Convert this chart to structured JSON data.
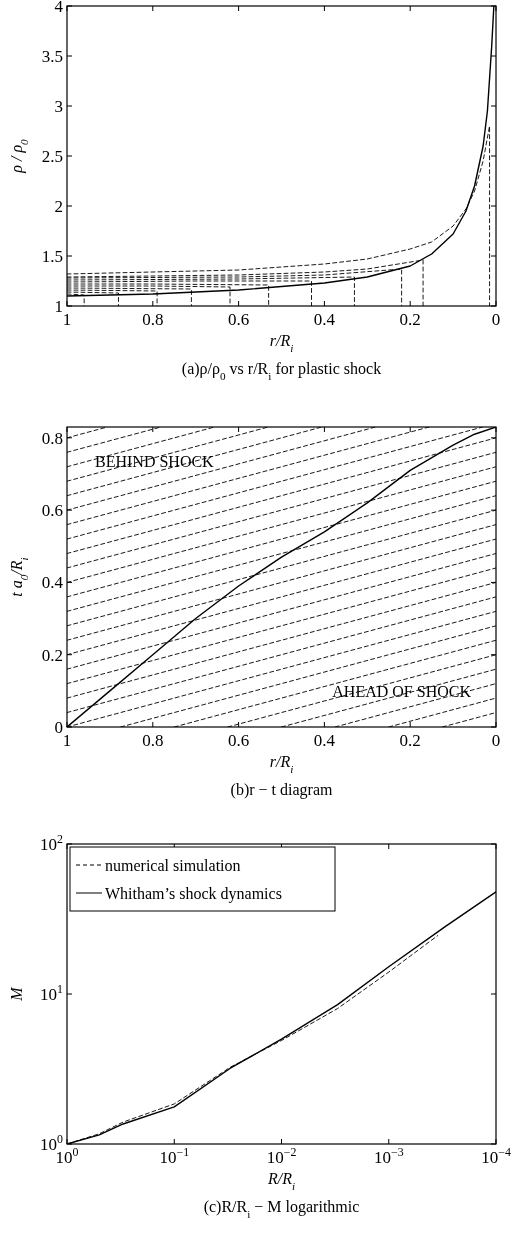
{
  "chart_data": [
    {
      "type": "line",
      "title": "(a)ρ/ρ$_{0}$ vs r/R$_{i}$ for plastic shock",
      "xlabel": "r/R$_{i}$",
      "ylabel": "ρ / ρ$_{0}$",
      "xlim": [
        1,
        0
      ],
      "ylim": [
        1,
        4
      ],
      "xticks": [
        1,
        0.8,
        0.6,
        0.4,
        0.2,
        0
      ],
      "yticks": [
        1,
        1.5,
        2,
        2.5,
        3,
        3.5,
        4
      ],
      "grid": false,
      "legend": false,
      "series": [
        {
          "color": "#000000",
          "line_style": "solid",
          "x": [
            1,
            0.8,
            0.6,
            0.4,
            0.3,
            0.2,
            0.15,
            0.1,
            0.07,
            0.05,
            0.03,
            0.02,
            0.01,
            0.005
          ],
          "values": [
            1.1,
            1.12,
            1.16,
            1.23,
            1.29,
            1.4,
            1.52,
            1.72,
            1.95,
            2.2,
            2.6,
            2.95,
            3.6,
            4
          ]
        },
        {
          "color": "#000000",
          "line_style": "dashed",
          "x": [
            1,
            0.96,
            0.96
          ],
          "values": [
            1.12,
            1.11,
            1
          ]
        },
        {
          "color": "#000000",
          "line_style": "dashed",
          "x": [
            1,
            0.88,
            0.88
          ],
          "values": [
            1.14,
            1.13,
            1
          ]
        },
        {
          "color": "#000000",
          "line_style": "dashed",
          "x": [
            1,
            0.79,
            0.79
          ],
          "values": [
            1.16,
            1.15,
            1
          ]
        },
        {
          "color": "#000000",
          "line_style": "dashed",
          "x": [
            1,
            0.71,
            0.71
          ],
          "values": [
            1.18,
            1.17,
            1
          ]
        },
        {
          "color": "#000000",
          "line_style": "dashed",
          "x": [
            1,
            0.8,
            0.62,
            0.62
          ],
          "values": [
            1.2,
            1.2,
            1.19,
            1
          ]
        },
        {
          "color": "#000000",
          "line_style": "dashed",
          "x": [
            1,
            0.8,
            0.53,
            0.53
          ],
          "values": [
            1.22,
            1.22,
            1.21,
            1
          ]
        },
        {
          "color": "#000000",
          "line_style": "dashed",
          "x": [
            1,
            0.7,
            0.43,
            0.43
          ],
          "values": [
            1.24,
            1.25,
            1.25,
            1
          ]
        },
        {
          "color": "#000000",
          "line_style": "dashed",
          "x": [
            1,
            0.6,
            0.33,
            0.33
          ],
          "values": [
            1.26,
            1.27,
            1.29,
            1
          ]
        },
        {
          "color": "#000000",
          "line_style": "dashed",
          "x": [
            1,
            0.6,
            0.4,
            0.22,
            0.22
          ],
          "values": [
            1.28,
            1.29,
            1.31,
            1.37,
            1
          ]
        },
        {
          "color": "#000000",
          "line_style": "dashed",
          "x": [
            1,
            0.6,
            0.4,
            0.3,
            0.17,
            0.17
          ],
          "values": [
            1.29,
            1.31,
            1.34,
            1.37,
            1.46,
            1
          ]
        },
        {
          "color": "#000000",
          "line_style": "dashed",
          "x": [
            1,
            0.6,
            0.4,
            0.3,
            0.2,
            0.15,
            0.1,
            0.07,
            0.05,
            0.03,
            0.015,
            0.015
          ],
          "values": [
            1.32,
            1.36,
            1.42,
            1.47,
            1.57,
            1.64,
            1.8,
            1.97,
            2.15,
            2.45,
            2.8,
            1
          ]
        }
      ]
    },
    {
      "type": "line",
      "title": "(b)r − t diagram",
      "xlabel": "r/R$_{i}$",
      "ylabel": "t a$_{0}$/R$_{i}$",
      "xlim": [
        1,
        0
      ],
      "ylim": [
        0,
        0.83
      ],
      "xticks": [
        1,
        0.8,
        0.6,
        0.4,
        0.2,
        0
      ],
      "yticks": [
        0,
        0.2,
        0.4,
        0.6,
        0.8
      ],
      "grid": false,
      "legend": false,
      "annotations": [
        "BEHIND SHOCK",
        "AHEAD OF SHOCK"
      ],
      "series": [
        {
          "color": "#000000",
          "line_style": "dashed",
          "x": [
            1,
            0.906
          ],
          "values": [
            0.8,
            0.83
          ]
        },
        {
          "color": "#000000",
          "line_style": "dashed",
          "x": [
            1,
            0.781
          ],
          "values": [
            0.76,
            0.83
          ]
        },
        {
          "color": "#000000",
          "line_style": "dashed",
          "x": [
            1,
            0.656
          ],
          "values": [
            0.72,
            0.83
          ]
        },
        {
          "color": "#000000",
          "line_style": "dashed",
          "x": [
            1,
            0.531
          ],
          "values": [
            0.68,
            0.83
          ]
        },
        {
          "color": "#000000",
          "line_style": "dashed",
          "x": [
            1,
            0.406
          ],
          "values": [
            0.64,
            0.83
          ]
        },
        {
          "color": "#000000",
          "line_style": "dashed",
          "x": [
            1,
            0.281
          ],
          "values": [
            0.6,
            0.83
          ]
        },
        {
          "color": "#000000",
          "line_style": "dashed",
          "x": [
            1,
            0.156
          ],
          "values": [
            0.56,
            0.83
          ]
        },
        {
          "color": "#000000",
          "line_style": "dashed",
          "x": [
            1,
            0.031
          ],
          "values": [
            0.52,
            0.83
          ]
        },
        {
          "color": "#000000",
          "line_style": "dashed",
          "x": [
            1,
            0
          ],
          "values": [
            0.48,
            0.8
          ]
        },
        {
          "color": "#000000",
          "line_style": "dashed",
          "x": [
            1,
            0
          ],
          "values": [
            0.44,
            0.76
          ]
        },
        {
          "color": "#000000",
          "line_style": "dashed",
          "x": [
            1,
            0
          ],
          "values": [
            0.4,
            0.72
          ]
        },
        {
          "color": "#000000",
          "line_style": "dashed",
          "x": [
            1,
            0
          ],
          "values": [
            0.36,
            0.68
          ]
        },
        {
          "color": "#000000",
          "line_style": "dashed",
          "x": [
            1,
            0
          ],
          "values": [
            0.32,
            0.64
          ]
        },
        {
          "color": "#000000",
          "line_style": "dashed",
          "x": [
            1,
            0
          ],
          "values": [
            0.28,
            0.6
          ]
        },
        {
          "color": "#000000",
          "line_style": "dashed",
          "x": [
            1,
            0
          ],
          "values": [
            0.24,
            0.56
          ]
        },
        {
          "color": "#000000",
          "line_style": "dashed",
          "x": [
            1,
            0
          ],
          "values": [
            0.2,
            0.52
          ]
        },
        {
          "color": "#000000",
          "line_style": "dashed",
          "x": [
            1,
            0
          ],
          "values": [
            0.16,
            0.48
          ]
        },
        {
          "color": "#000000",
          "line_style": "dashed",
          "x": [
            1,
            0
          ],
          "values": [
            0.12,
            0.44
          ]
        },
        {
          "color": "#000000",
          "line_style": "dashed",
          "x": [
            1,
            0
          ],
          "values": [
            0.08,
            0.4
          ]
        },
        {
          "color": "#000000",
          "line_style": "dashed",
          "x": [
            1,
            0
          ],
          "values": [
            0.04,
            0.36
          ]
        },
        {
          "color": "#000000",
          "line_style": "dashed",
          "x": [
            1,
            0
          ],
          "values": [
            0,
            0.32
          ]
        },
        {
          "color": "#000000",
          "line_style": "dashed",
          "x": [
            0.875,
            0
          ],
          "values": [
            0,
            0.28
          ]
        },
        {
          "color": "#000000",
          "line_style": "dashed",
          "x": [
            0.75,
            0
          ],
          "values": [
            0,
            0.24
          ]
        },
        {
          "color": "#000000",
          "line_style": "dashed",
          "x": [
            0.625,
            0
          ],
          "values": [
            0,
            0.2
          ]
        },
        {
          "color": "#000000",
          "line_style": "dashed",
          "x": [
            0.5,
            0
          ],
          "values": [
            0,
            0.16
          ]
        },
        {
          "color": "#000000",
          "line_style": "dashed",
          "x": [
            0.375,
            0
          ],
          "values": [
            0,
            0.12
          ]
        },
        {
          "color": "#000000",
          "line_style": "dashed",
          "x": [
            0.25,
            0
          ],
          "values": [
            0,
            0.08
          ]
        },
        {
          "color": "#000000",
          "line_style": "dashed",
          "x": [
            0.125,
            0
          ],
          "values": [
            0,
            0.04
          ]
        },
        {
          "color": "#000000",
          "line_style": "solid",
          "x": [
            1,
            0.9,
            0.8,
            0.7,
            0.6,
            0.5,
            0.4,
            0.3,
            0.2,
            0.1,
            0.05,
            0
          ],
          "values": [
            0,
            0.1,
            0.2,
            0.3,
            0.39,
            0.47,
            0.54,
            0.62,
            0.71,
            0.78,
            0.81,
            0.83
          ]
        }
      ]
    },
    {
      "type": "line",
      "title": "(c)R/R$_{i}$ − M logarithmic",
      "xlabel": "R/R$_{i}$",
      "ylabel": "M",
      "log": "xy",
      "xlim": [
        1,
        0.0001
      ],
      "ylim": [
        1,
        100
      ],
      "xticks": [
        {
          "value": 1,
          "label": "10$^{0}$"
        },
        {
          "value": 0.1,
          "label": "10$^{−1}$"
        },
        {
          "value": 0.01,
          "label": "10$^{−2}$"
        },
        {
          "value": 0.001,
          "label": "10$^{−3}$"
        },
        {
          "value": 0.0001,
          "label": "10$^{−4}$"
        }
      ],
      "yticks": [
        {
          "value": 1,
          "label": "10$^{0}$"
        },
        {
          "value": 10,
          "label": "10$^{1}$"
        },
        {
          "value": 100,
          "label": "10$^{2}$"
        }
      ],
      "grid": false,
      "legend": "top left",
      "series": [
        {
          "name": "numerical simulation",
          "color": "#000000",
          "line_style": "dashed",
          "x": [
            1,
            0.5,
            0.3,
            0.1,
            0.03,
            0.01,
            0.003,
            0.001,
            0.00035
          ],
          "values": [
            1,
            1.17,
            1.4,
            1.85,
            3.25,
            4.9,
            8,
            14,
            24.5
          ]
        },
        {
          "name": "Whitham’s shock dynamics",
          "color": "#000000",
          "line_style": "solid",
          "x": [
            1,
            0.5,
            0.3,
            0.1,
            0.03,
            0.01,
            0.003,
            0.001,
            0.0003,
            0.0001
          ],
          "values": [
            1,
            1.15,
            1.36,
            1.77,
            3.2,
            5,
            8.5,
            15.2,
            28,
            48
          ]
        }
      ]
    }
  ]
}
